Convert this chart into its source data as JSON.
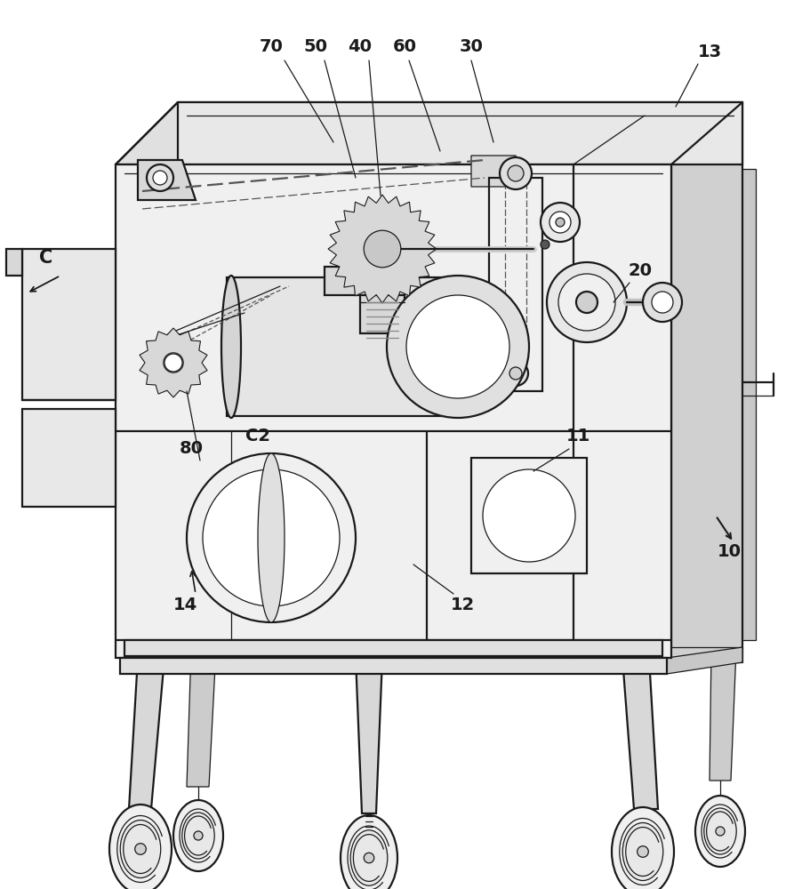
{
  "background_color": "#ffffff",
  "line_color": "#1a1a1a",
  "label_color": "#000000",
  "figsize": [
    8.84,
    10.0
  ],
  "dpi": 100,
  "lw_main": 1.6,
  "lw_thin": 0.9,
  "lw_thick": 2.5
}
